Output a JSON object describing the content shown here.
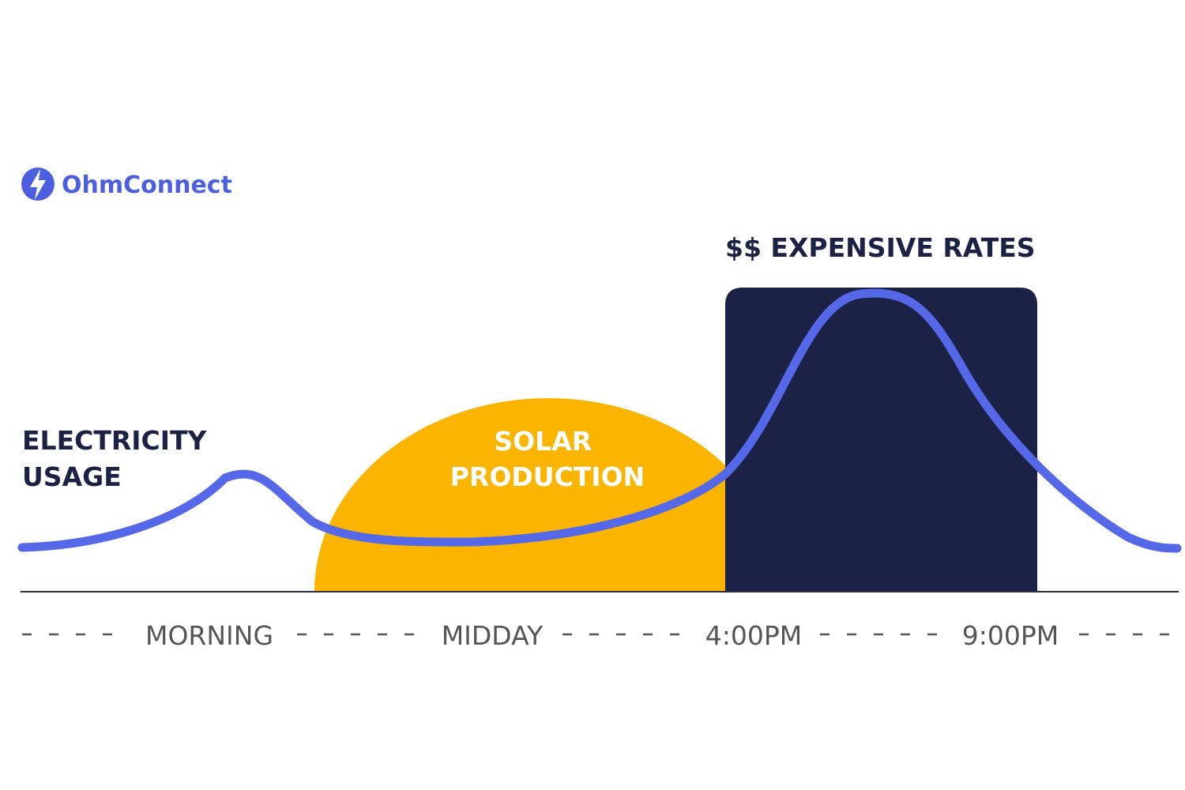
{
  "brand": {
    "name": "OhmConnect",
    "icon": "lightning-bolt-icon"
  },
  "chart_data": {
    "type": "line",
    "categories": [
      "MORNING",
      "MIDDAY",
      "4:00PM",
      "9:00PM"
    ],
    "series": [
      {
        "name": "ELECTRICITY USAGE"
      }
    ],
    "annotations": {
      "usage_label": [
        "ELECTRICITY",
        "USAGE"
      ],
      "solar_label": [
        "SOLAR",
        "PRODUCTION"
      ],
      "expensive_label": "$$ EXPENSIVE RATES"
    },
    "axis_style": "dashed",
    "grid": false
  },
  "colors": {
    "usage_line": "#5468E8",
    "solar": "#FBB500",
    "peak_block": "#1B2245",
    "dark_text": "#1B2245",
    "axis_text": "#555555",
    "baseline": "#2B2F45",
    "brand": "#4B5FE0",
    "background": "#FFFFFF"
  }
}
